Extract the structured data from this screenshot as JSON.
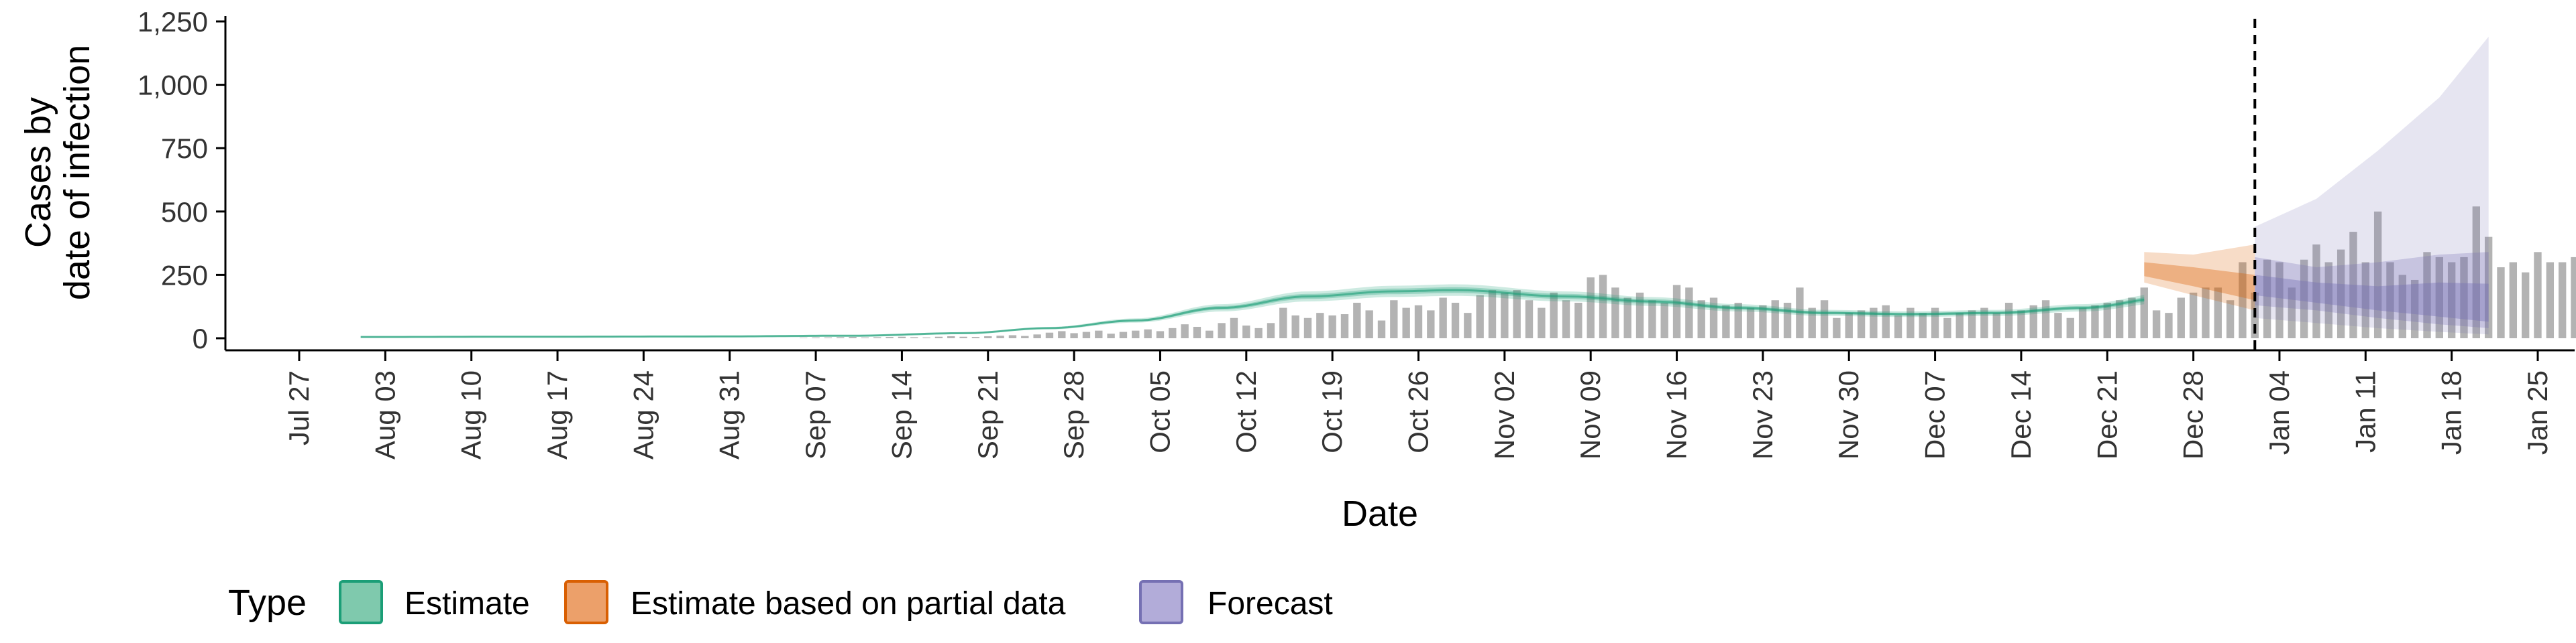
{
  "chart_data": {
    "type": "bar",
    "title": "",
    "xlabel": "Date",
    "ylabel": [
      "Cases by",
      "date of infection"
    ],
    "ylim": [
      0,
      1250
    ],
    "y_ticks": [
      0,
      250,
      500,
      750,
      1000,
      1250
    ],
    "y_tick_labels": [
      "0",
      "250",
      "500",
      "750",
      "1,000",
      "1,250"
    ],
    "x_range": [
      "2020-07-21",
      "2021-01-28"
    ],
    "x_ticks": [
      "2020-07-27",
      "2020-08-03",
      "2020-08-10",
      "2020-08-17",
      "2020-08-24",
      "2020-08-31",
      "2020-09-07",
      "2020-09-14",
      "2020-09-21",
      "2020-09-28",
      "2020-10-05",
      "2020-10-12",
      "2020-10-19",
      "2020-10-26",
      "2020-11-02",
      "2020-11-09",
      "2020-11-16",
      "2020-11-23",
      "2020-11-30",
      "2020-12-07",
      "2020-12-14",
      "2020-12-21",
      "2020-12-28",
      "2021-01-04",
      "2021-01-11",
      "2021-01-18",
      "2021-01-25"
    ],
    "x_tick_labels": [
      "Jul 27",
      "Aug 03",
      "Aug 10",
      "Aug 17",
      "Aug 24",
      "Aug 31",
      "Sep 07",
      "Sep 14",
      "Sep 21",
      "Sep 28",
      "Oct 05",
      "Oct 12",
      "Oct 19",
      "Oct 26",
      "Nov 02",
      "Nov 09",
      "Nov 16",
      "Nov 23",
      "Nov 30",
      "Dec 07",
      "Dec 14",
      "Dec 21",
      "Dec 28",
      "Jan 04",
      "Jan 11",
      "Jan 18",
      "Jan 25"
    ],
    "forecast_date": "2021-01-02",
    "legend": {
      "title": "Type",
      "position": "bottom",
      "entries": [
        {
          "label": "Estimate",
          "fill": "#7fc9ad",
          "stroke": "#1b9e77"
        },
        {
          "label": "Estimate based on partial data",
          "fill": "#eca06a",
          "stroke": "#d95f02"
        },
        {
          "label": "Forecast",
          "fill": "#b2acd9",
          "stroke": "#7570b3"
        }
      ]
    },
    "colors": {
      "bars": "#b3b3b3",
      "estimate": "#1b9e77",
      "partial": "#d95f02",
      "forecast": "#7570b3",
      "vline": "#000000"
    },
    "bars": {
      "start_date": "2020-08-01",
      "values": [
        0,
        0,
        0,
        0,
        0,
        0,
        0,
        0,
        0,
        0,
        0,
        0,
        0,
        0,
        0,
        0,
        0,
        0,
        0,
        0,
        0,
        0,
        0,
        0,
        0,
        0,
        0,
        0,
        0,
        0,
        0,
        0,
        0,
        0,
        0,
        0,
        2,
        3,
        3,
        4,
        5,
        3,
        4,
        5,
        6,
        4,
        3,
        6,
        8,
        6,
        5,
        8,
        10,
        12,
        9,
        15,
        22,
        28,
        20,
        25,
        30,
        18,
        25,
        30,
        35,
        28,
        40,
        55,
        45,
        30,
        60,
        80,
        50,
        40,
        60,
        120,
        90,
        80,
        100,
        90,
        95,
        140,
        110,
        70,
        150,
        120,
        130,
        110,
        160,
        140,
        100,
        170,
        190,
        180,
        190,
        150,
        120,
        180,
        150,
        140,
        240,
        250,
        200,
        160,
        180,
        150,
        140,
        210,
        200,
        150,
        160,
        130,
        140,
        120,
        130,
        150,
        140,
        200,
        120,
        150,
        80,
        100,
        110,
        120,
        130,
        90,
        120,
        100,
        120,
        80,
        100,
        110,
        120,
        100,
        140,
        110,
        130,
        150,
        100,
        80,
        120,
        130,
        140,
        150,
        160,
        200,
        110,
        100,
        160,
        180,
        200,
        200,
        150,
        300,
        180,
        310,
        300,
        200,
        310,
        370,
        300,
        350,
        420,
        300,
        500,
        300,
        250,
        230,
        340,
        320,
        300,
        320,
        520,
        400,
        280,
        300,
        260,
        340,
        300,
        300,
        320,
        300
      ]
    },
    "estimate": {
      "start_date": "2020-08-01",
      "end_date": "2020-12-24",
      "median": [
        [
          0,
          5
        ],
        [
          14,
          6
        ],
        [
          28,
          7
        ],
        [
          40,
          10
        ],
        [
          49,
          20
        ],
        [
          56,
          40
        ],
        [
          63,
          70
        ],
        [
          70,
          120
        ],
        [
          77,
          165
        ],
        [
          84,
          185
        ],
        [
          89,
          190
        ],
        [
          98,
          165
        ],
        [
          105,
          145
        ],
        [
          112,
          120
        ],
        [
          119,
          100
        ],
        [
          126,
          95
        ],
        [
          133,
          100
        ],
        [
          140,
          120
        ],
        [
          147,
          160
        ],
        [
          154,
          220
        ],
        [
          161,
          290
        ],
        [
          168,
          330
        ],
        [
          175,
          345
        ],
        [
          182,
          330
        ],
        [
          189,
          300
        ],
        [
          193,
          280
        ]
      ],
      "band_inner": [
        12,
        18
      ],
      "band_outer": [
        24,
        32
      ]
    },
    "partial": {
      "start_date": "2020-12-24",
      "end_date": "2021-01-02",
      "median": [
        [
          0,
          270
        ],
        [
          4,
          240
        ],
        [
          9,
          195
        ]
      ],
      "inner": [
        [
          0,
          245,
          300
        ],
        [
          4,
          205,
          280
        ],
        [
          9,
          150,
          250
        ]
      ],
      "outer": [
        [
          0,
          220,
          340
        ],
        [
          4,
          170,
          330
        ],
        [
          9,
          110,
          370
        ]
      ]
    },
    "forecast": {
      "start_date": "2021-01-02",
      "end_date": "2021-01-21",
      "median": [
        [
          0,
          200
        ],
        [
          5,
          170
        ],
        [
          10,
          145
        ],
        [
          15,
          110
        ],
        [
          19,
          95
        ]
      ],
      "inner": [
        [
          0,
          170,
          250
        ],
        [
          5,
          140,
          220
        ],
        [
          10,
          110,
          205
        ],
        [
          15,
          85,
          220
        ],
        [
          19,
          65,
          215
        ]
      ],
      "mid": [
        [
          0,
          130,
          320
        ],
        [
          5,
          110,
          280
        ],
        [
          10,
          80,
          300
        ],
        [
          15,
          55,
          330
        ],
        [
          19,
          40,
          340
        ]
      ],
      "outer": [
        [
          0,
          80,
          440
        ],
        [
          5,
          60,
          550
        ],
        [
          10,
          40,
          740
        ],
        [
          15,
          25,
          950
        ],
        [
          19,
          15,
          1190
        ]
      ]
    }
  }
}
